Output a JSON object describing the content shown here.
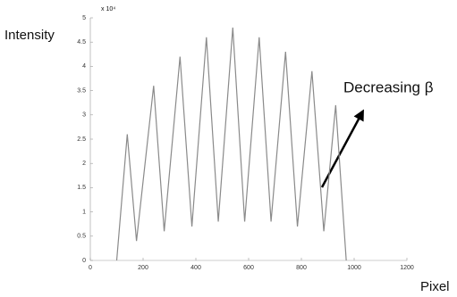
{
  "chart_data": {
    "type": "line",
    "y_label": "Intensity",
    "x_label": "Pixel",
    "exponent": "x 10⁴",
    "annotation": "Decreasing β",
    "xlim": [
      0,
      1200
    ],
    "xticks": [
      0,
      200,
      400,
      600,
      800,
      1000,
      1200
    ],
    "ylim": [
      0,
      5
    ],
    "yticks": [
      0,
      0.5,
      1,
      1.5,
      2,
      2.5,
      3,
      3.5,
      4,
      4.5,
      5
    ],
    "grid": false,
    "series": [
      {
        "color": "#8a8a8a",
        "x": [
          100,
          140,
          175,
          240,
          280,
          340,
          385,
          440,
          485,
          540,
          585,
          640,
          685,
          740,
          785,
          840,
          885,
          930,
          970
        ],
        "values": [
          0,
          2.6,
          0.4,
          3.6,
          0.6,
          4.2,
          0.7,
          4.6,
          0.8,
          4.8,
          0.8,
          4.6,
          0.8,
          4.3,
          0.7,
          3.9,
          0.6,
          3.2,
          0
        ]
      }
    ]
  }
}
